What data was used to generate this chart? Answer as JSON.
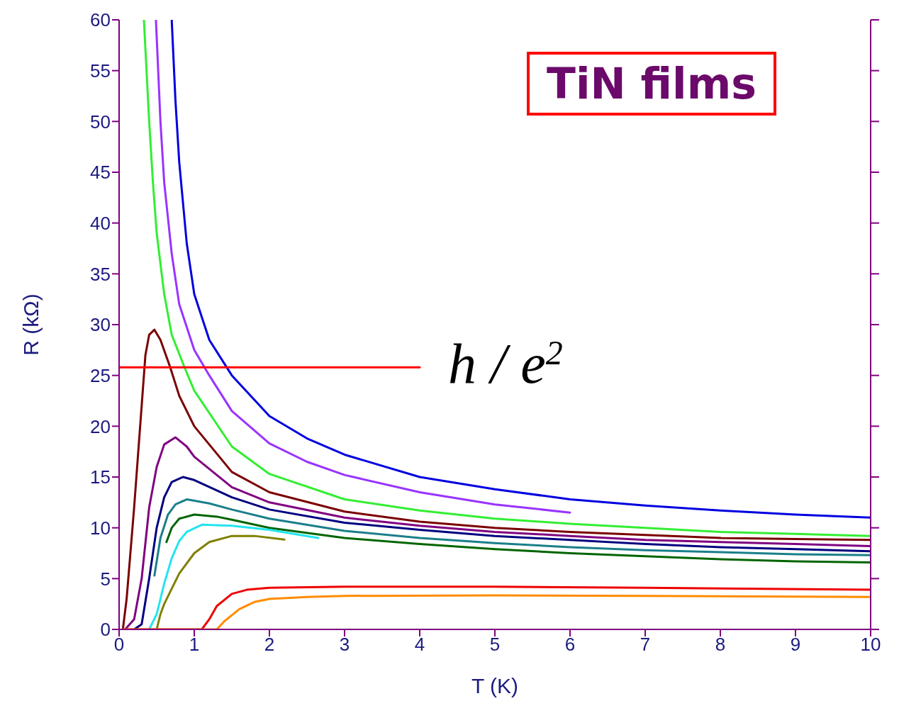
{
  "chart_data": {
    "type": "line",
    "title": "TiN films",
    "xlabel": "T (K)",
    "ylabel": "R (kΩ)",
    "xlim": [
      0,
      10
    ],
    "xticks": [
      0,
      1,
      2,
      3,
      4,
      5,
      6,
      7,
      8,
      9,
      10
    ],
    "ylim": [
      0,
      60
    ],
    "yticks": [
      0,
      5,
      10,
      15,
      20,
      25,
      30,
      35,
      40,
      45,
      50,
      55,
      60
    ],
    "marker": "none",
    "line_style": "solid",
    "annotations": [
      {
        "text": "h / e$^{2}$",
        "x": 4,
        "y": 25.8
      }
    ],
    "series": [
      {
        "color": "#0000e0",
        "x": [
          0.7,
          0.75,
          0.8,
          0.9,
          1.0,
          1.2,
          1.5,
          2,
          2.5,
          3,
          4,
          5,
          6,
          7,
          8,
          9,
          10
        ],
        "values": [
          60,
          52,
          46,
          38,
          33,
          28.5,
          25,
          21,
          18.8,
          17.2,
          15,
          13.8,
          12.8,
          12.2,
          11.7,
          11.3,
          11.0
        ]
      },
      {
        "color": "#9933ff",
        "x": [
          0.49,
          0.55,
          0.6,
          0.7,
          0.8,
          1.0,
          1.2,
          1.5,
          2,
          2.5,
          3,
          4,
          5,
          6
        ],
        "values": [
          60,
          50,
          44,
          37,
          32,
          27.5,
          25,
          21.5,
          18.3,
          16.5,
          15.2,
          13.5,
          12.3,
          11.5
        ]
      },
      {
        "color": "#33ee33",
        "x": [
          0.33,
          0.4,
          0.45,
          0.5,
          0.6,
          0.7,
          0.87,
          1,
          1.5,
          2,
          3,
          4,
          5,
          6,
          7,
          8,
          9,
          10
        ],
        "values": [
          60,
          50,
          44,
          39,
          33,
          29,
          25.8,
          23.5,
          18,
          15.3,
          12.8,
          11.7,
          10.9,
          10.4,
          10,
          9.6,
          9.4,
          9.2
        ]
      },
      {
        "color": "#7b0000",
        "x": [
          0.05,
          0.1,
          0.2,
          0.3,
          0.35,
          0.4,
          0.47,
          0.55,
          0.68,
          0.8,
          1,
          1.5,
          2,
          3,
          4,
          5,
          6,
          7,
          8,
          9,
          10
        ],
        "values": [
          0,
          3,
          12,
          22,
          27,
          29,
          29.5,
          28.5,
          25.8,
          23,
          20,
          15.5,
          13.5,
          11.6,
          10.6,
          10,
          9.6,
          9.3,
          9,
          8.9,
          8.8
        ]
      },
      {
        "color": "#800080",
        "x": [
          0.08,
          0.2,
          0.3,
          0.4,
          0.5,
          0.6,
          0.75,
          0.9,
          1,
          1.5,
          2,
          3,
          4,
          5,
          6,
          7,
          8,
          9,
          10
        ],
        "values": [
          0,
          1,
          5,
          12,
          16,
          18.2,
          18.9,
          18,
          17,
          14,
          12.5,
          11,
          10.2,
          9.6,
          9.2,
          8.8,
          8.6,
          8.4,
          8.2
        ]
      },
      {
        "color": "#000080",
        "x": [
          0.2,
          0.3,
          0.4,
          0.5,
          0.6,
          0.7,
          0.85,
          1,
          1.5,
          2,
          3,
          4,
          5,
          6,
          7,
          8,
          9,
          10
        ],
        "values": [
          0,
          0.5,
          5,
          10,
          13,
          14.5,
          15,
          14.7,
          13,
          11.8,
          10.5,
          9.8,
          9.2,
          8.8,
          8.4,
          8.1,
          7.9,
          7.7
        ]
      },
      {
        "color": "#1a7f8a",
        "x": [
          0.47,
          0.55,
          0.65,
          0.75,
          0.9,
          1.2,
          1.5,
          2,
          3,
          4,
          5,
          6,
          7,
          8,
          9,
          10
        ],
        "values": [
          5.3,
          9,
          11.3,
          12.3,
          12.8,
          12.4,
          11.8,
          10.9,
          9.7,
          9,
          8.5,
          8.1,
          7.8,
          7.6,
          7.4,
          7.3
        ]
      },
      {
        "color": "#006400",
        "x": [
          0.63,
          0.7,
          0.8,
          1,
          1.3,
          1.5,
          2,
          3,
          4,
          5,
          6,
          7,
          8,
          9,
          10
        ],
        "values": [
          8.6,
          10,
          10.9,
          11.3,
          11.1,
          10.8,
          10,
          9,
          8.4,
          7.9,
          7.5,
          7.2,
          6.9,
          6.7,
          6.6
        ]
      },
      {
        "color": "#22e5f0",
        "x": [
          0.4,
          0.5,
          0.6,
          0.7,
          0.8,
          0.9,
          1.1,
          1.5,
          2,
          2.65
        ],
        "values": [
          0,
          1.5,
          4.5,
          7,
          8.7,
          9.6,
          10.3,
          10.2,
          9.8,
          9.0
        ]
      },
      {
        "color": "#808000",
        "x": [
          0.5,
          0.55,
          0.6,
          0.8,
          1,
          1.2,
          1.5,
          1.8,
          2.2
        ],
        "values": [
          0,
          1.5,
          2.5,
          5.5,
          7.5,
          8.6,
          9.2,
          9.2,
          8.85
        ]
      },
      {
        "color": "#ee0000",
        "x": [
          0.05,
          1.1,
          1.2,
          1.3,
          1.5,
          1.7,
          2,
          3,
          5,
          7,
          10
        ],
        "values": [
          0,
          0,
          1,
          2.3,
          3.5,
          3.9,
          4.1,
          4.2,
          4.2,
          4.1,
          3.9
        ]
      },
      {
        "color": "#ff8c00",
        "x": [
          0.05,
          1.3,
          1.4,
          1.6,
          1.8,
          2,
          2.5,
          3,
          5,
          7,
          10
        ],
        "values": [
          0,
          0,
          0.8,
          2,
          2.7,
          3,
          3.2,
          3.3,
          3.35,
          3.3,
          3.2
        ]
      },
      {
        "color": "#ff0000",
        "x": [
          0,
          4
        ],
        "values": [
          25.8,
          25.8
        ]
      }
    ]
  }
}
